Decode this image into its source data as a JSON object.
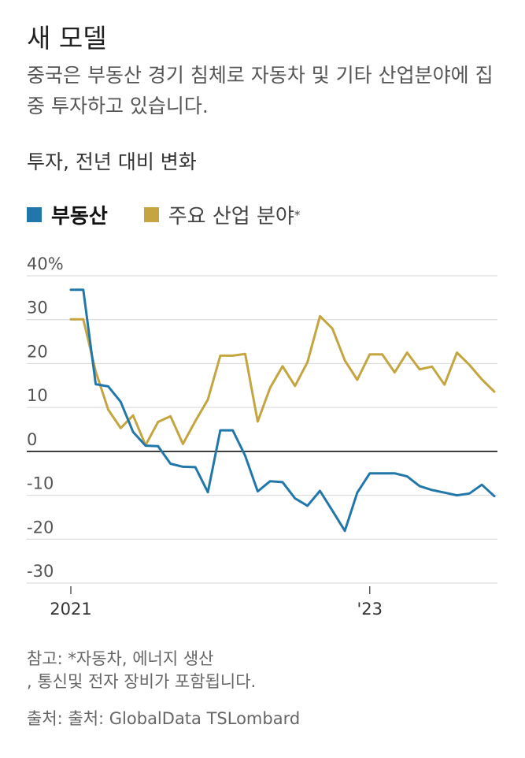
{
  "header": {
    "title": "새 모델",
    "subtitle": "중국은 부동산 경기 침체로 자동차 및 기타 산업분야에 집중 투자하고 있습니다.",
    "axis_label": "투자, 전년 대비 변화"
  },
  "legend": [
    {
      "label": "부동산",
      "color": "#2277aa"
    },
    {
      "label": "주요 산업 분야",
      "suffix": "*",
      "color": "#c4a53f"
    }
  ],
  "footer": {
    "note_line1": "참고: *자동차, 에너지 생산",
    "note_line2": ", 통신및 전자 장비가 포함됩니다.",
    "source": "출처: 출처: GlobalData TSLombard"
  },
  "chart_data": {
    "type": "line",
    "title": "새 모델",
    "ylabel": "투자, 전년 대비 변화",
    "ylim": [
      -30,
      40
    ],
    "yticks": [
      40,
      30,
      20,
      10,
      0,
      -10,
      -20,
      -30
    ],
    "ytick_labels": [
      "40%",
      "30",
      "20",
      "10",
      "0",
      "-10",
      "-20",
      "-30"
    ],
    "xticks": [
      {
        "index": 0,
        "label": "2021"
      },
      {
        "index": 24,
        "label": "'23"
      }
    ],
    "x_months": 35,
    "series": [
      {
        "name": "부동산",
        "color": "#2277aa",
        "values": [
          36.8,
          36.8,
          15.3,
          14.8,
          11.3,
          4.4,
          1.3,
          1.2,
          -2.8,
          -3.5,
          -3.6,
          -9.3,
          4.8,
          4.8,
          -1.0,
          -9.1,
          -6.8,
          -7.0,
          -10.7,
          -12.4,
          -9.0,
          -13.5,
          -18.1,
          -9.4,
          -5.0,
          -5.0,
          -5.0,
          -5.7,
          -7.9,
          -8.8,
          -9.4,
          -10.0,
          -9.6,
          -7.6,
          -10.2
        ]
      },
      {
        "name": "주요 산업 분야",
        "color": "#c4a53f",
        "values": [
          30.1,
          30.1,
          18.2,
          9.5,
          5.3,
          8.2,
          1.4,
          6.7,
          8.0,
          1.7,
          6.9,
          11.8,
          21.8,
          21.8,
          22.2,
          6.8,
          14.5,
          19.4,
          14.9,
          20.3,
          30.8,
          28.0,
          20.7,
          16.3,
          22.1,
          22.1,
          18.0,
          22.5,
          18.7,
          19.3,
          15.2,
          22.5,
          19.7,
          16.4,
          13.6
        ]
      }
    ]
  }
}
